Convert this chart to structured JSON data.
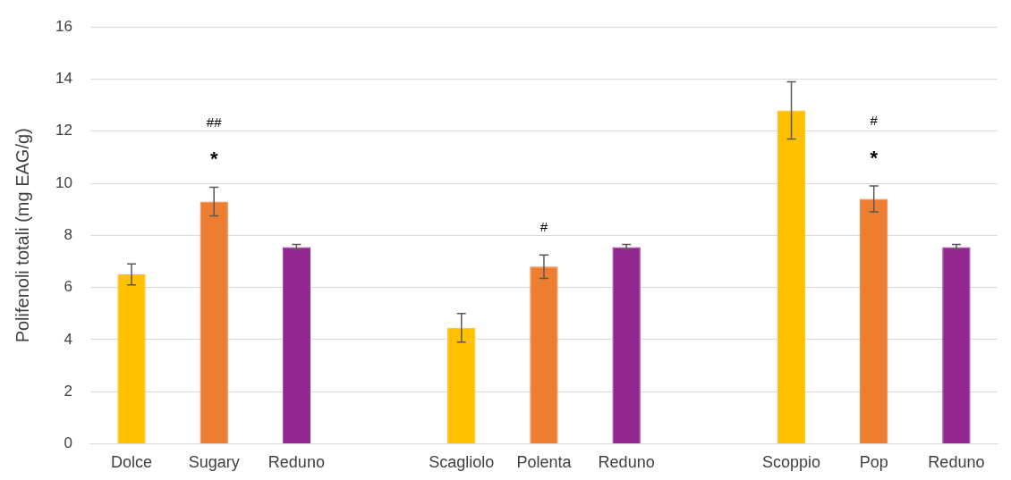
{
  "chart_data": {
    "type": "bar",
    "ylabel": "Polifenoli totali (mg EAG/g)",
    "categories": [
      "Dolce",
      "Sugary",
      "Reduno",
      null,
      "Scagliolo",
      "Polenta",
      "Reduno",
      null,
      "Scoppio",
      "Pop",
      "Reduno"
    ],
    "values": [
      6.5,
      9.3,
      7.55,
      null,
      4.45,
      6.8,
      7.55,
      null,
      12.8,
      9.4,
      7.55
    ],
    "errors": [
      0.4,
      0.55,
      0.1,
      null,
      0.55,
      0.45,
      0.1,
      null,
      1.1,
      0.5,
      0.1
    ],
    "colors": [
      "#ffc000",
      "#ed7d31",
      "#92278f",
      "#ffffff",
      "#ffc000",
      "#ed7d31",
      "#92278f",
      "#ffffff",
      "#ffc000",
      "#ed7d31",
      "#92278f"
    ],
    "ylim": [
      0,
      16
    ],
    "yticks": [
      0,
      2,
      4,
      6,
      8,
      10,
      12,
      14,
      16
    ],
    "grid": "y",
    "legend": false,
    "annotations": [
      {
        "text": "*",
        "x": "Sugary",
        "y": 9.3
      },
      "##",
      {
        "text": "#",
        "x": "Polenta",
        "y": 6.8
      },
      {
        "text": "*",
        "x": "Pop",
        "y": 9.4
      },
      "#"
    ]
  }
}
